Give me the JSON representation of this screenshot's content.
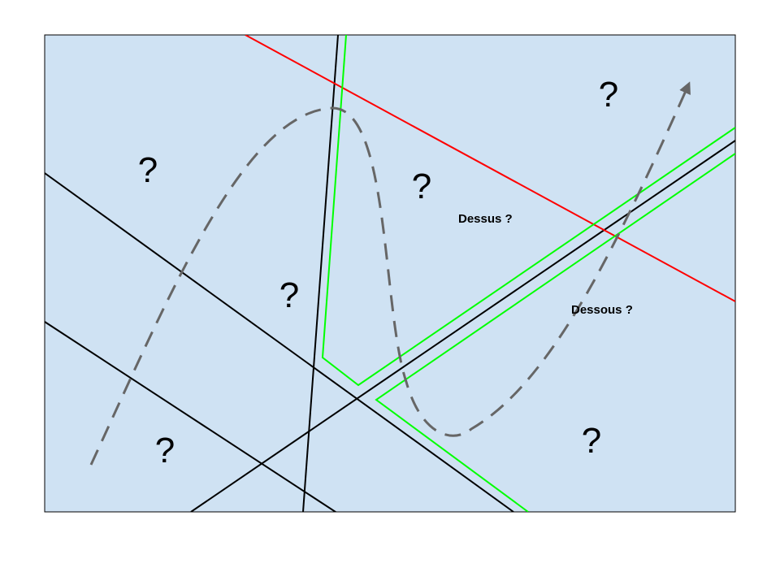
{
  "diagram": {
    "region_labels": [
      "?",
      "?",
      "?",
      "?",
      "?",
      "?"
    ],
    "side_labels": {
      "above": "Dessus ?",
      "below": "Dessous ?"
    },
    "colors": {
      "panel_fill": "#cfe2f3",
      "panel_border": "#000000",
      "black_line": "#000000",
      "red_line": "#ff0000",
      "green_line": "#00ff00",
      "dashed_curve": "#666666"
    }
  }
}
